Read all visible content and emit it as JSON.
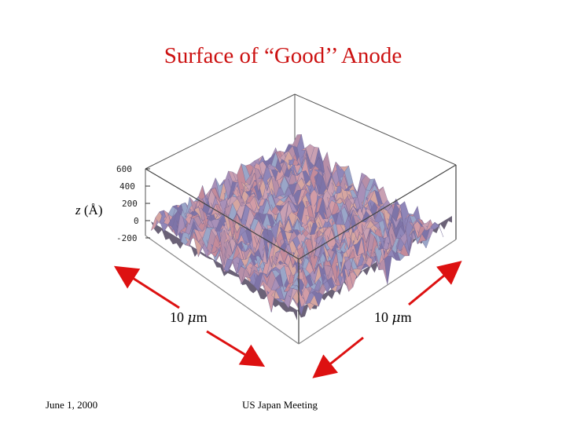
{
  "slide": {
    "title": "Surface of “Good’’ Anode",
    "z_axis_var": "z",
    "z_axis_unit": " (Å)",
    "z_ticks": [
      "600",
      "400",
      "200",
      "0",
      "-200"
    ],
    "dim_left": {
      "mu": "μ",
      "value": "10 ",
      "unit": "m"
    },
    "dim_right": {
      "mu": "μ",
      "value": "10 ",
      "unit": "m"
    },
    "footer_date": "June 1, 2000",
    "footer_event": "US Japan Meeting"
  },
  "colors": {
    "title": "#cc1111",
    "arrows": "#dd1111",
    "surface_base": "#c8909a"
  }
}
